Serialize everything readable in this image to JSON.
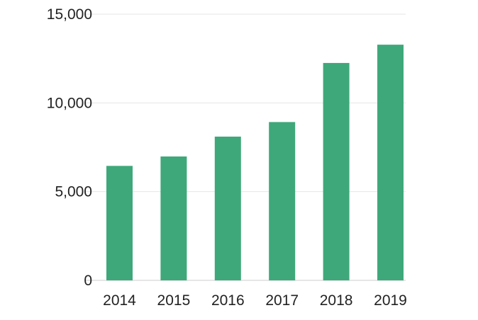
{
  "chart_data": {
    "type": "bar",
    "categories": [
      "2014",
      "2015",
      "2016",
      "2017",
      "2018",
      "2019"
    ],
    "values": [
      6450,
      6980,
      8100,
      8920,
      12250,
      13280
    ],
    "title": "",
    "xlabel": "",
    "ylabel": "",
    "ylim": [
      0,
      15000
    ],
    "yticks": [
      0,
      5000,
      10000,
      15000
    ],
    "ytick_labels": [
      "0",
      "5,000",
      "10,000",
      "15,000"
    ],
    "grid": true,
    "legend": "none",
    "colors": {
      "bar": "#3ea87a",
      "grid": "#e6e6e6",
      "baseline": "#cccccc",
      "text": "#222222"
    }
  }
}
